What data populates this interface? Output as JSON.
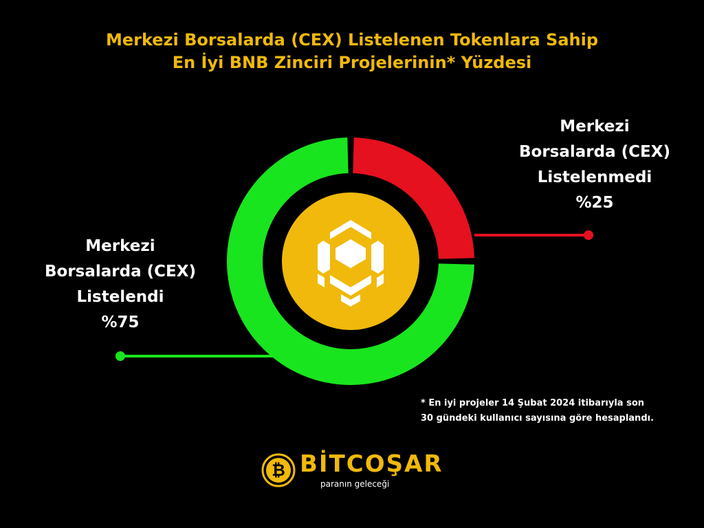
{
  "title": {
    "line1": "Merkezi Borsalarda (CEX) Listelenen Tokenlara Sahip",
    "line2": "En İyi BNB Zinciri Projelerinin* Yüzdesi"
  },
  "chart_data": {
    "type": "pie",
    "slices": [
      {
        "label_lines": [
          "Merkezi",
          "Borsalarda (CEX)",
          "Listelenmedi"
        ],
        "value": 25,
        "value_label": "%25",
        "color": "#E5111F"
      },
      {
        "label_lines": [
          "Merkezi",
          "Borsalarda (CEX)",
          "Listelendi"
        ],
        "value": 75,
        "value_label": "%75",
        "color": "#19E51E"
      }
    ],
    "center_icon": "bnb-logo-icon",
    "center_color": "#F0B90B"
  },
  "footnote": {
    "line1": "* En iyi projeler 14 Şubat 2024 itibarıyla son",
    "line2": "30 gündeki kullanıcı sayısına göre hesaplandı."
  },
  "brand": {
    "name": "BİTCOŞAR",
    "tagline": "paranın geleceği",
    "icon": "bitcoin-coin-icon",
    "color": "#F0B90B"
  }
}
